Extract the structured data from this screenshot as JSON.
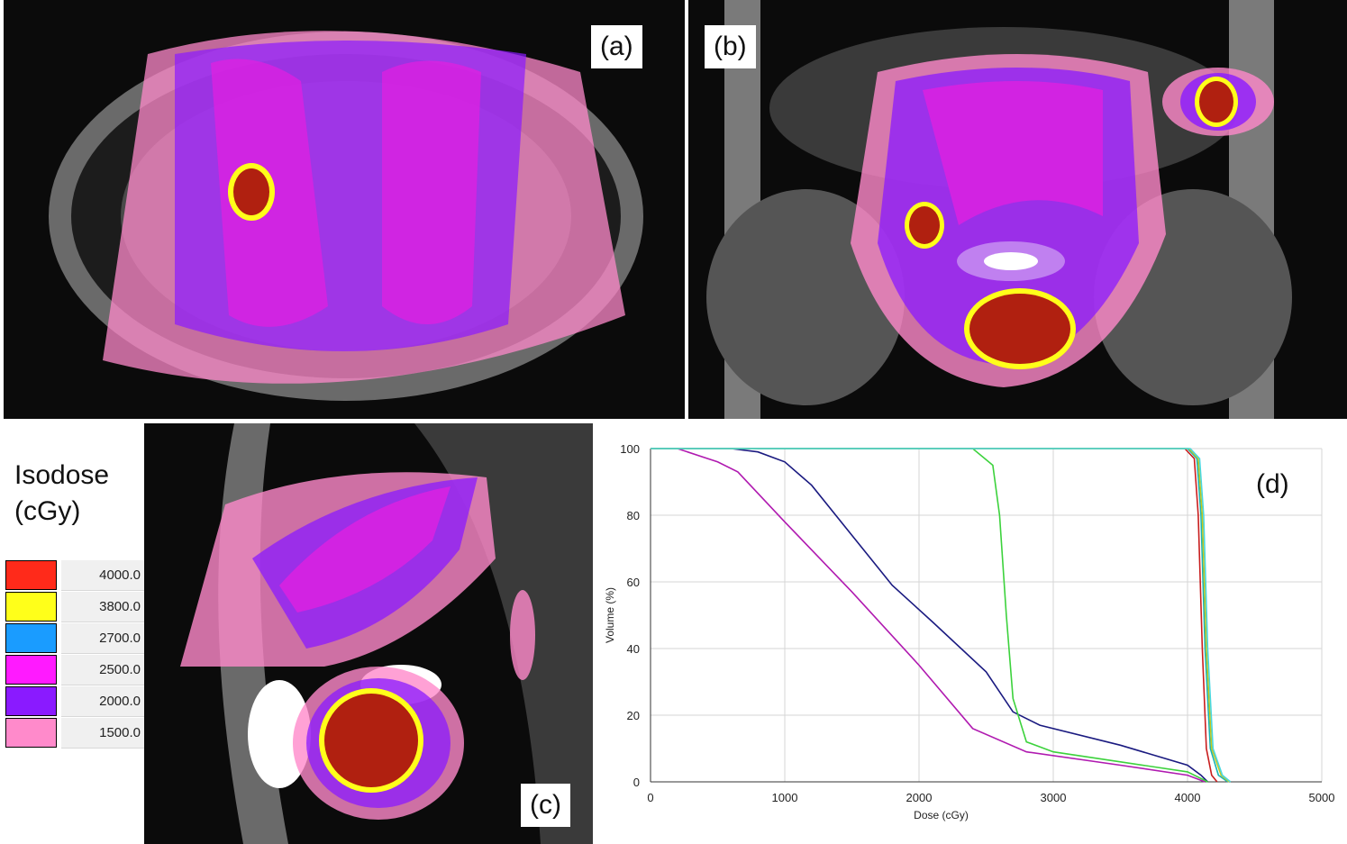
{
  "panels": {
    "a": {
      "label": "(a)"
    },
    "b": {
      "label": "(b)"
    },
    "c": {
      "label": "(c)"
    },
    "d": {
      "label": "(d)"
    }
  },
  "legend": {
    "title_line1": "Isodose",
    "title_line2": "(cGy)",
    "levels": [
      {
        "value": "4000.0",
        "color": "#ff2a1a"
      },
      {
        "value": "3800.0",
        "color": "#ffff1a"
      },
      {
        "value": "2700.0",
        "color": "#1a9cff"
      },
      {
        "value": "2500.0",
        "color": "#ff1aff"
      },
      {
        "value": "2000.0",
        "color": "#8a1aff"
      },
      {
        "value": "1500.0",
        "color": "#ff8acb"
      }
    ]
  },
  "chart_data": {
    "type": "line",
    "xlabel": "Dose (cGy)",
    "ylabel": "Volume (%)",
    "xlim": [
      0,
      5000
    ],
    "ylim": [
      0,
      100
    ],
    "xticks": [
      0,
      1000,
      2000,
      3000,
      4000,
      5000
    ],
    "yticks": [
      0,
      20,
      40,
      60,
      80,
      100
    ],
    "grid": true,
    "series": [
      {
        "color": "#b01ab0",
        "x": [
          0,
          200,
          500,
          650,
          1000,
          1500,
          2000,
          2400,
          2800,
          3500,
          4000,
          4130
        ],
        "y": [
          100,
          100,
          96,
          93,
          78,
          57,
          35,
          16,
          9,
          5,
          2,
          0
        ]
      },
      {
        "color": "#1a1a80",
        "x": [
          0,
          600,
          800,
          1000,
          1200,
          1500,
          1800,
          2100,
          2500,
          2700,
          2900,
          3500,
          4000,
          4100,
          4150
        ],
        "y": [
          100,
          100,
          99,
          96,
          89,
          74,
          59,
          48,
          33,
          21,
          17,
          11,
          5,
          2,
          0
        ]
      },
      {
        "color": "#3cd23c",
        "x": [
          0,
          2400,
          2550,
          2600,
          2650,
          2700,
          2800,
          3000,
          3500,
          4000,
          4150
        ],
        "y": [
          100,
          100,
          95,
          80,
          50,
          25,
          12,
          9,
          6,
          3,
          0
        ]
      },
      {
        "color": "#c81e1e",
        "x": [
          0,
          3980,
          4050,
          4080,
          4110,
          4140,
          4180,
          4220
        ],
        "y": [
          100,
          100,
          97,
          80,
          40,
          10,
          2,
          0
        ]
      },
      {
        "color": "#1ab4b4",
        "x": [
          0,
          4000,
          4070,
          4100,
          4130,
          4170,
          4230,
          4300
        ],
        "y": [
          100,
          100,
          97,
          80,
          40,
          10,
          2,
          0
        ]
      },
      {
        "color": "#c8c81a",
        "x": [
          0,
          4010,
          4080,
          4110,
          4140,
          4180,
          4250,
          4310
        ],
        "y": [
          100,
          100,
          97,
          80,
          40,
          10,
          2,
          0
        ]
      },
      {
        "color": "#4ad8e0",
        "x": [
          0,
          4020,
          4090,
          4120,
          4150,
          4190,
          4260,
          4320
        ],
        "y": [
          100,
          100,
          97,
          80,
          40,
          10,
          2,
          0
        ]
      }
    ]
  }
}
